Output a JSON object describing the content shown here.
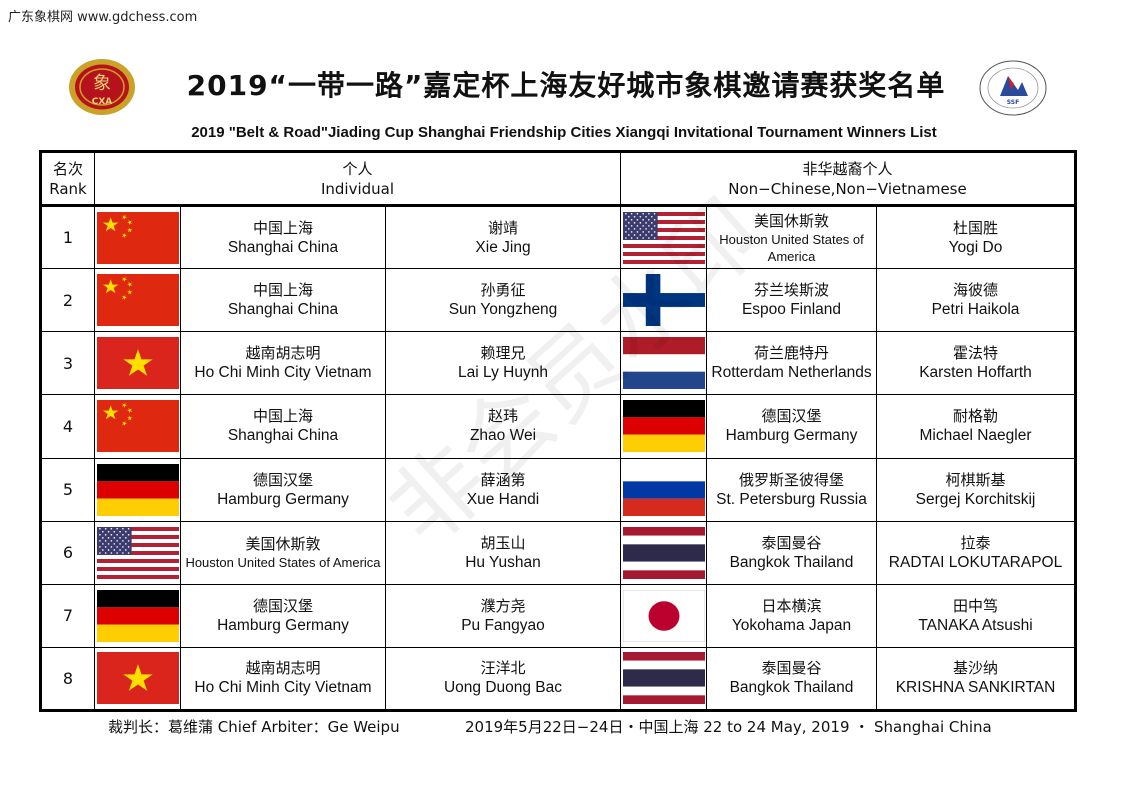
{
  "site_tag": "广东象棋网 www.gdchess.com",
  "title_cn": "2019“一带一路”嘉定杯上海友好城市象棋邀请赛获奖名单",
  "title_en": "2019 \"Belt & Road\"Jiading Cup Shanghai Friendship Cities Xiangqi Invitational Tournament Winners List",
  "logo_left_text": "CXA",
  "logo_left_glyph": "象",
  "logo_right_text": "SSF",
  "watermark": "非会员水印",
  "header": {
    "rank_cn": "名次",
    "rank_en": "Rank",
    "individual_cn": "个人",
    "individual_en": "Individual",
    "non_cn": "非华越裔个人",
    "non_en": "Non−Chinese,Non−Vietnamese"
  },
  "rows": [
    {
      "rank": "1",
      "a": {
        "flag": "china-flag",
        "place_cn": "中国上海",
        "place_en": "Shanghai China",
        "name_cn": "谢靖",
        "name_en": "Xie Jing"
      },
      "b": {
        "flag": "usa-flag",
        "place_cn": "美国休斯敦",
        "place_en": "Houston United States of America",
        "name_cn": "杜国胜",
        "name_en": "Yogi Do"
      }
    },
    {
      "rank": "2",
      "a": {
        "flag": "china-flag",
        "place_cn": "中国上海",
        "place_en": "Shanghai China",
        "name_cn": "孙勇征",
        "name_en": "Sun Yongzheng"
      },
      "b": {
        "flag": "finland-flag",
        "place_cn": "芬兰埃斯波",
        "place_en": "Espoo Finland",
        "name_cn": "海彼德",
        "name_en": "Petri Haikola"
      }
    },
    {
      "rank": "3",
      "a": {
        "flag": "vietnam-flag",
        "place_cn": "越南胡志明",
        "place_en": "Ho Chi Minh City Vietnam",
        "name_cn": "赖理兄",
        "name_en": "Lai Ly Huynh"
      },
      "b": {
        "flag": "netherlands-flag",
        "place_cn": "荷兰鹿特丹",
        "place_en": "Rotterdam   Netherlands",
        "name_cn": "霍法特",
        "name_en": "Karsten Hoffarth"
      }
    },
    {
      "rank": "4",
      "a": {
        "flag": "china-flag",
        "place_cn": "中国上海",
        "place_en": "Shanghai China",
        "name_cn": "赵玮",
        "name_en": "Zhao Wei"
      },
      "b": {
        "flag": "germany-flag",
        "place_cn": "德国汉堡",
        "place_en": "Hamburg Germany",
        "name_cn": "耐格勒",
        "name_en": "Michael Naegler"
      }
    },
    {
      "rank": "5",
      "a": {
        "flag": "germany-flag",
        "place_cn": "德国汉堡",
        "place_en": "Hamburg Germany",
        "name_cn": "薛涵第",
        "name_en": "Xue Handi"
      },
      "b": {
        "flag": "russia-flag",
        "place_cn": "俄罗斯圣彼得堡",
        "place_en": "St. Petersburg Russia",
        "name_cn": "柯棋斯基",
        "name_en": "Sergej Korchitskij"
      }
    },
    {
      "rank": "6",
      "a": {
        "flag": "usa-flag",
        "place_cn": "美国休斯敦",
        "place_en": "Houston United States of America",
        "name_cn": "胡玉山",
        "name_en": "Hu Yushan"
      },
      "b": {
        "flag": "thailand-flag",
        "place_cn": "泰国曼谷",
        "place_en": "Bangkok Thailand",
        "name_cn": "拉泰",
        "name_en": "RADTAI LOKUTARAPOL"
      }
    },
    {
      "rank": "7",
      "a": {
        "flag": "germany-flag",
        "place_cn": "德国汉堡",
        "place_en": "Hamburg Germany",
        "name_cn": "濮方尧",
        "name_en": "Pu Fangyao"
      },
      "b": {
        "flag": "japan-flag",
        "place_cn": "日本横滨",
        "place_en": "Yokohama Japan",
        "name_cn": "田中笃",
        "name_en": "TANAKA Atsushi"
      }
    },
    {
      "rank": "8",
      "a": {
        "flag": "vietnam-flag",
        "place_cn": "越南胡志明",
        "place_en": "Ho Chi Minh City Vietnam",
        "name_cn": "汪洋北",
        "name_en": "Uong Duong Bac"
      },
      "b": {
        "flag": "thailand-flag",
        "place_cn": "泰国曼谷",
        "place_en": "Bangkok Thailand",
        "name_cn": "基沙纳",
        "name_en": "KRISHNA SANKIRTAN"
      }
    }
  ],
  "footer": {
    "arbiter": "裁判长：葛维蒲  Chief Arbiter：Ge Weipu",
    "dates": "2019年5月22日−24日・中国上海     22 to 24 May, 2019  ・  Shanghai China"
  },
  "colors": {
    "china_red": "#de2910",
    "china_yellow": "#ffde00",
    "vietnam_red": "#da251d",
    "usa_red": "#b22234",
    "usa_blue": "#3c3b6e",
    "finland_blue": "#003580",
    "nl_red": "#ae1c28",
    "nl_blue": "#21468b",
    "de_black": "#000000",
    "de_red": "#dd0000",
    "de_gold": "#ffce00",
    "ru_blue": "#0039a6",
    "ru_red": "#d52b1e",
    "th_red": "#a51931",
    "th_blue": "#2d2a4a",
    "jp_red": "#bc002d",
    "logo_gold": "#c9a227",
    "logo_red": "#b5121b"
  }
}
